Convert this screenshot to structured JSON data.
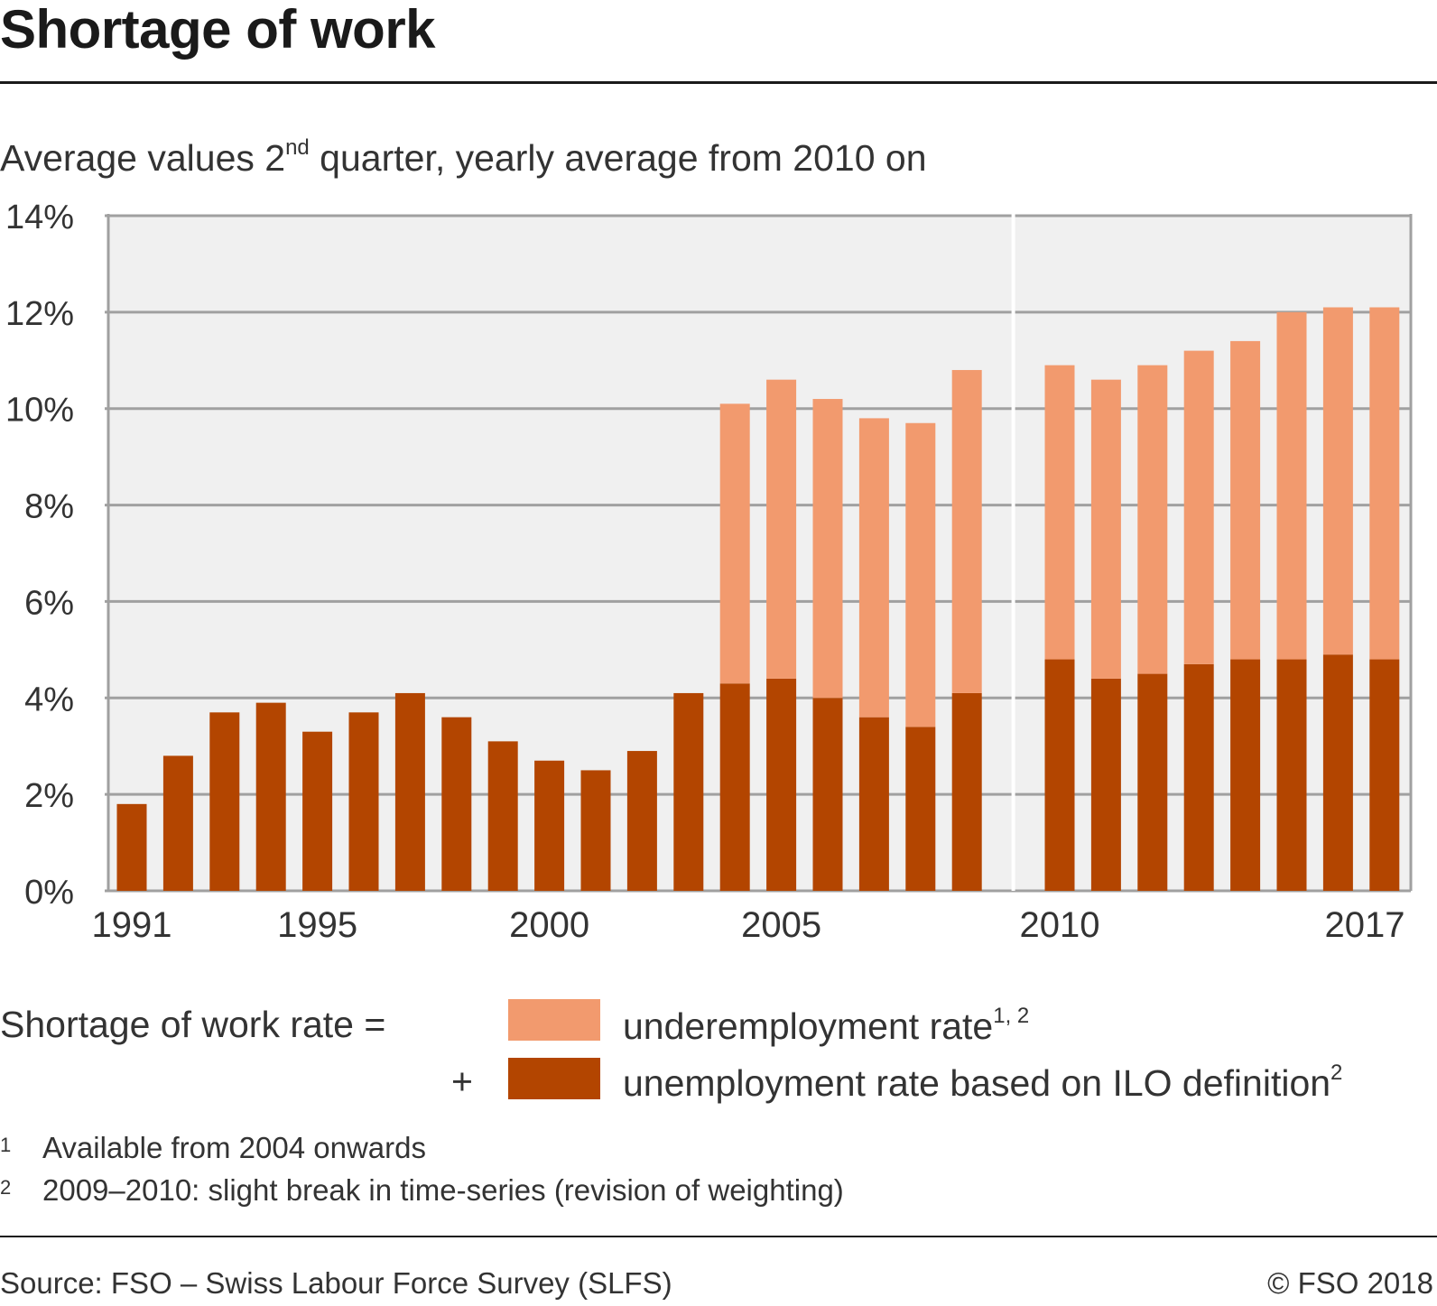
{
  "header": {
    "title": "Shortage of work",
    "subtitle_pre": "Average values 2",
    "subtitle_sup": "nd",
    "subtitle_post": " quarter, yearly average from 2010 on"
  },
  "legend": {
    "title": "Shortage of work rate =",
    "plus": "+",
    "underemployment_label": "underemployment rate",
    "underemployment_sup": "1, 2",
    "unemployment_label": "unemployment rate based on ILO definition",
    "unemployment_sup": "2"
  },
  "footnotes": [
    {
      "num": "1",
      "text": "Available from 2004 onwards"
    },
    {
      "num": "2",
      "text": "2009–2010: slight break in time-series (revision of weighting)"
    }
  ],
  "footer": {
    "source": "Source: FSO – Swiss Labour Force Survey (SLFS)",
    "copyright": "© FSO 2018"
  },
  "colors": {
    "unemployment": "#b34500",
    "underemployment": "#f29a6e",
    "plot_background": "#f0f0f0",
    "gridline": "#a0a0a0"
  },
  "chart_data": {
    "type": "bar",
    "stacked": true,
    "title": "Shortage of work",
    "subtitle": "Average values 2nd quarter, yearly average from 2010 on",
    "xlabel": "",
    "ylabel": "",
    "ylim": [
      0,
      14
    ],
    "yticks": [
      "0%",
      "2%",
      "4%",
      "6%",
      "8%",
      "10%",
      "12%",
      "14%"
    ],
    "ytick_values": [
      0,
      2,
      4,
      6,
      8,
      10,
      12,
      14
    ],
    "xtick_labels": [
      "1991",
      "1995",
      "2000",
      "2005",
      "2010",
      "2017"
    ],
    "series_break_after": "2009",
    "grid": true,
    "legend_position": "bottom",
    "categories": [
      "1991",
      "1992",
      "1993",
      "1994",
      "1995",
      "1996",
      "1997",
      "1998",
      "1999",
      "2000",
      "2001",
      "2002",
      "2003",
      "2004",
      "2005",
      "2006",
      "2007",
      "2008",
      "2009",
      "2010",
      "2011",
      "2012",
      "2013",
      "2014",
      "2015",
      "2016",
      "2017"
    ],
    "series": [
      {
        "name": "unemployment rate based on ILO definition",
        "values": [
          1.8,
          2.8,
          3.7,
          3.9,
          3.3,
          3.7,
          4.1,
          3.6,
          3.1,
          2.7,
          2.5,
          2.9,
          4.1,
          4.3,
          4.4,
          4.0,
          3.6,
          3.4,
          4.1,
          4.8,
          4.4,
          4.5,
          4.7,
          4.8,
          4.8,
          4.9,
          4.8
        ]
      },
      {
        "name": "underemployment rate",
        "values": [
          0,
          0,
          0,
          0,
          0,
          0,
          0,
          0,
          0,
          0,
          0,
          0,
          0,
          5.8,
          6.2,
          6.2,
          6.2,
          6.3,
          6.7,
          6.1,
          6.2,
          6.4,
          6.5,
          6.6,
          7.2,
          7.2,
          7.3
        ]
      }
    ]
  }
}
